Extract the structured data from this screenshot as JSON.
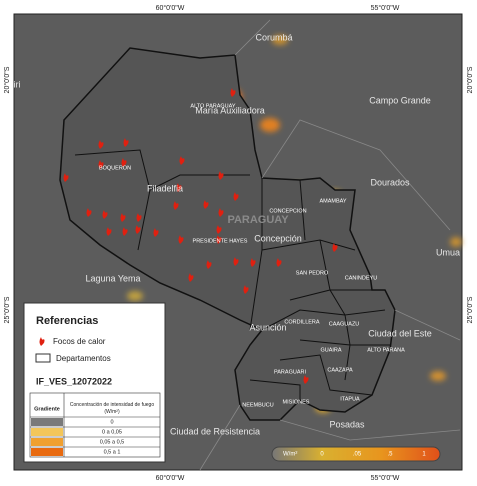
{
  "axes": {
    "top": [
      "60°0'0\"W",
      "55°0'0\"W"
    ],
    "bottom": [
      "60°0'0\"W",
      "55°0'0\"W"
    ],
    "left": [
      "20°0'0\"S",
      "25°0'0\"S"
    ],
    "right": [
      "20°0'0\"S",
      "25°0'0\"S"
    ]
  },
  "places": [
    "iri",
    "Corumbá",
    "María Auxiliadora",
    "Campo Grande",
    "Dourados",
    "Umua",
    "Filadelfia",
    "Concepción",
    "Laguna Yema",
    "Asunción",
    "Ciudad del Este",
    "Posadas",
    "Ciudad de Resistencia"
  ],
  "watermark": "PARAGUAY",
  "departments": [
    "ALTO PARAGUAY",
    "BOQUERON",
    "PRESIDENTE HAYES",
    "CONCEPCION",
    "AMAMBAY",
    "SAN PEDRO",
    "CANINDEYU",
    "CORDILLERA",
    "CAAGUAZU",
    "ALTO PARANA",
    "GUAIRA",
    "CAAZAPA",
    "PARAGUARI",
    "MISIONES",
    "ITAPUA",
    "NEEMBUCU"
  ],
  "legend": {
    "title": "Referencias",
    "items": [
      "Focos de calor",
      "Departamentos"
    ],
    "layer": "IF_VES_12072022",
    "table": {
      "headers": [
        "Gradiente",
        "Concentración de intensidad de fuego (W/m²)"
      ],
      "rows": [
        "0",
        "0 a 0,05",
        "0,05 a 0,5",
        "0,5 a 1"
      ]
    }
  },
  "scale_bar": {
    "unit": "W/m²",
    "labels": [
      "0",
      ".05",
      ".5",
      "1"
    ]
  }
}
